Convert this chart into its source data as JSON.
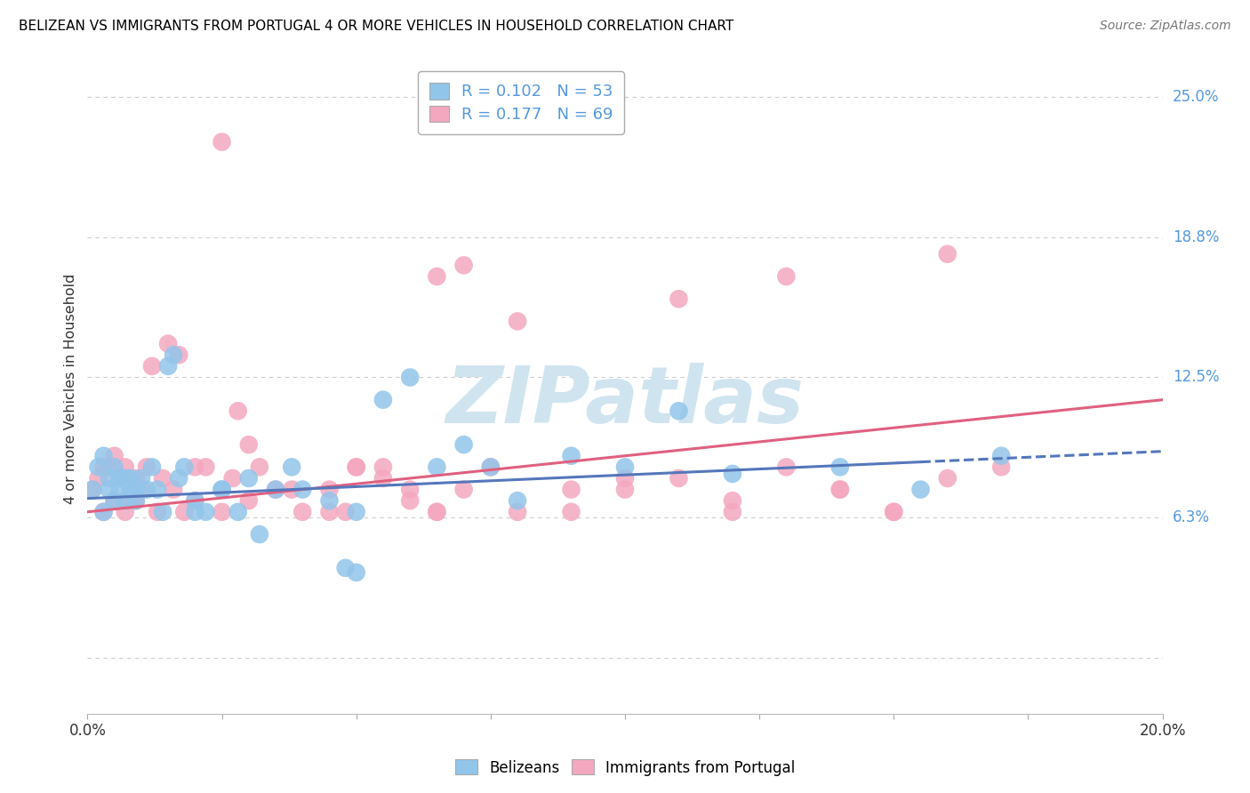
{
  "title": "BELIZEAN VS IMMIGRANTS FROM PORTUGAL 4 OR MORE VEHICLES IN HOUSEHOLD CORRELATION CHART",
  "source": "Source: ZipAtlas.com",
  "ylabel": "4 or more Vehicles in Household",
  "ytick_vals": [
    0.0,
    0.0625,
    0.125,
    0.1875,
    0.25
  ],
  "ytick_labels_right": [
    "",
    "6.3%",
    "12.5%",
    "18.8%",
    "25.0%"
  ],
  "xlim": [
    0.0,
    0.2
  ],
  "ylim": [
    -0.025,
    0.265
  ],
  "belizean_R": 0.102,
  "belizean_N": 53,
  "portugal_R": 0.177,
  "portugal_N": 69,
  "belizean_color": "#92C5EA",
  "portugal_color": "#F4A8C0",
  "belizean_line_color": "#5577BB",
  "portugal_line_color": "#E06080",
  "grid_color": "#CCCCCC",
  "right_tick_color": "#5599DD",
  "watermark_color": "#D0E4F0",
  "watermark_text": "ZIPatlas",
  "belizean_x": [
    0.001,
    0.002,
    0.003,
    0.003,
    0.004,
    0.004,
    0.005,
    0.005,
    0.006,
    0.006,
    0.007,
    0.007,
    0.008,
    0.008,
    0.009,
    0.009,
    0.01,
    0.011,
    0.012,
    0.013,
    0.014,
    0.015,
    0.016,
    0.017,
    0.018,
    0.02,
    0.022,
    0.025,
    0.028,
    0.032,
    0.035,
    0.038,
    0.04,
    0.045,
    0.048,
    0.05,
    0.055,
    0.06,
    0.065,
    0.07,
    0.075,
    0.08,
    0.09,
    0.1,
    0.11,
    0.12,
    0.14,
    0.155,
    0.17,
    0.02,
    0.025,
    0.03,
    0.05
  ],
  "belizean_y": [
    0.075,
    0.085,
    0.09,
    0.065,
    0.08,
    0.075,
    0.085,
    0.07,
    0.08,
    0.075,
    0.08,
    0.07,
    0.075,
    0.08,
    0.075,
    0.07,
    0.08,
    0.075,
    0.085,
    0.075,
    0.065,
    0.13,
    0.135,
    0.08,
    0.085,
    0.07,
    0.065,
    0.075,
    0.065,
    0.055,
    0.075,
    0.085,
    0.075,
    0.07,
    0.04,
    0.065,
    0.115,
    0.125,
    0.085,
    0.095,
    0.085,
    0.07,
    0.09,
    0.085,
    0.11,
    0.082,
    0.085,
    0.075,
    0.09,
    0.065,
    0.075,
    0.08,
    0.038
  ],
  "portugal_x": [
    0.001,
    0.002,
    0.003,
    0.003,
    0.004,
    0.005,
    0.005,
    0.006,
    0.007,
    0.007,
    0.008,
    0.009,
    0.009,
    0.01,
    0.011,
    0.012,
    0.013,
    0.014,
    0.015,
    0.016,
    0.017,
    0.018,
    0.02,
    0.022,
    0.025,
    0.027,
    0.028,
    0.03,
    0.032,
    0.035,
    0.038,
    0.04,
    0.045,
    0.048,
    0.05,
    0.055,
    0.06,
    0.065,
    0.07,
    0.075,
    0.08,
    0.09,
    0.1,
    0.11,
    0.12,
    0.13,
    0.14,
    0.15,
    0.16,
    0.065,
    0.07,
    0.08,
    0.09,
    0.1,
    0.11,
    0.12,
    0.13,
    0.14,
    0.15,
    0.16,
    0.17,
    0.045,
    0.05,
    0.055,
    0.06,
    0.065,
    0.02,
    0.025,
    0.03
  ],
  "portugal_y": [
    0.075,
    0.08,
    0.085,
    0.065,
    0.085,
    0.09,
    0.07,
    0.08,
    0.085,
    0.065,
    0.07,
    0.08,
    0.07,
    0.075,
    0.085,
    0.13,
    0.065,
    0.08,
    0.14,
    0.075,
    0.135,
    0.065,
    0.07,
    0.085,
    0.065,
    0.08,
    0.11,
    0.07,
    0.085,
    0.075,
    0.075,
    0.065,
    0.075,
    0.065,
    0.085,
    0.085,
    0.075,
    0.065,
    0.075,
    0.085,
    0.065,
    0.075,
    0.08,
    0.16,
    0.07,
    0.085,
    0.075,
    0.065,
    0.08,
    0.17,
    0.175,
    0.15,
    0.065,
    0.075,
    0.08,
    0.065,
    0.17,
    0.075,
    0.065,
    0.18,
    0.085,
    0.065,
    0.085,
    0.08,
    0.07,
    0.065,
    0.085,
    0.23,
    0.095
  ],
  "trend_bel_x0": 0.0,
  "trend_bel_y0": 0.071,
  "trend_bel_x1": 0.2,
  "trend_bel_y1": 0.092,
  "trend_por_x0": 0.0,
  "trend_por_y0": 0.065,
  "trend_por_x1": 0.2,
  "trend_por_y1": 0.115
}
